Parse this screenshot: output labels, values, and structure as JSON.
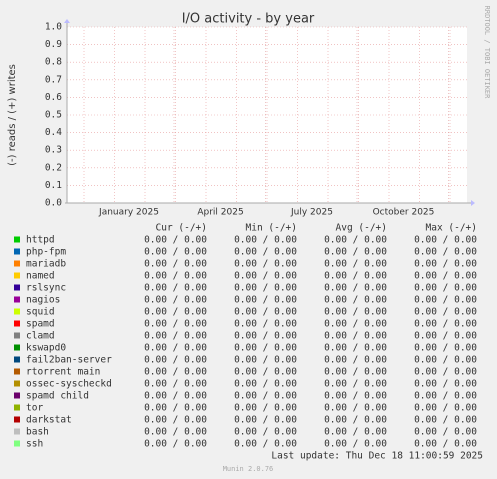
{
  "chart_data": {
    "type": "line",
    "title": "I/O activity - by year",
    "y_label": "(-) reads / (+) writes",
    "side_label": "RRDTOOL / TOBI OETIKER",
    "ylim": [
      0,
      1
    ],
    "yticks": [
      {
        "value": 0,
        "label": "0.0"
      },
      {
        "value": 0.1,
        "label": "0.1"
      },
      {
        "value": 0.2,
        "label": "0.2"
      },
      {
        "value": 0.3,
        "label": "0.3"
      },
      {
        "value": 0.4,
        "label": "0.4"
      },
      {
        "value": 0.5,
        "label": "0.5"
      },
      {
        "value": 0.6,
        "label": "0.6"
      },
      {
        "value": 0.7,
        "label": "0.7"
      },
      {
        "value": 0.8,
        "label": "0.8"
      },
      {
        "value": 0.9,
        "label": "0.9"
      },
      {
        "value": 1,
        "label": "1.0"
      }
    ],
    "xticks": [
      "January 2025",
      "April 2025",
      "July 2025",
      "October 2025"
    ],
    "grid": true,
    "columns": [
      "Cur (-/+)",
      "Min (-/+)",
      "Avg (-/+)",
      "Max (-/+)"
    ],
    "series": [
      {
        "name": "httpd",
        "color": "#00cc00",
        "cur": "0.00 / 0.00",
        "min": "0.00 / 0.00",
        "avg": "0.00 / 0.00",
        "max": "0.00 / 0.00"
      },
      {
        "name": "php-fpm",
        "color": "#0066b3",
        "cur": "0.00 / 0.00",
        "min": "0.00 / 0.00",
        "avg": "0.00 / 0.00",
        "max": "0.00 / 0.00"
      },
      {
        "name": "mariadb",
        "color": "#ff8000",
        "cur": "0.00 / 0.00",
        "min": "0.00 / 0.00",
        "avg": "0.00 / 0.00",
        "max": "0.00 / 0.00"
      },
      {
        "name": "named",
        "color": "#ffcc00",
        "cur": "0.00 / 0.00",
        "min": "0.00 / 0.00",
        "avg": "0.00 / 0.00",
        "max": "0.00 / 0.00"
      },
      {
        "name": "rslsync",
        "color": "#330099",
        "cur": "0.00 / 0.00",
        "min": "0.00 / 0.00",
        "avg": "0.00 / 0.00",
        "max": "0.00 / 0.00"
      },
      {
        "name": "nagios",
        "color": "#990099",
        "cur": "0.00 / 0.00",
        "min": "0.00 / 0.00",
        "avg": "0.00 / 0.00",
        "max": "0.00 / 0.00"
      },
      {
        "name": "squid",
        "color": "#ccff00",
        "cur": "0.00 / 0.00",
        "min": "0.00 / 0.00",
        "avg": "0.00 / 0.00",
        "max": "0.00 / 0.00"
      },
      {
        "name": "spamd",
        "color": "#ff0000",
        "cur": "0.00 / 0.00",
        "min": "0.00 / 0.00",
        "avg": "0.00 / 0.00",
        "max": "0.00 / 0.00"
      },
      {
        "name": "clamd",
        "color": "#808080",
        "cur": "0.00 / 0.00",
        "min": "0.00 / 0.00",
        "avg": "0.00 / 0.00",
        "max": "0.00 / 0.00"
      },
      {
        "name": "kswapd0",
        "color": "#008f00",
        "cur": "0.00 / 0.00",
        "min": "0.00 / 0.00",
        "avg": "0.00 / 0.00",
        "max": "0.00 / 0.00"
      },
      {
        "name": "fail2ban-server",
        "color": "#00487d",
        "cur": "0.00 / 0.00",
        "min": "0.00 / 0.00",
        "avg": "0.00 / 0.00",
        "max": "0.00 / 0.00"
      },
      {
        "name": "rtorrent main",
        "color": "#b35a00",
        "cur": "0.00 / 0.00",
        "min": "0.00 / 0.00",
        "avg": "0.00 / 0.00",
        "max": "0.00 / 0.00"
      },
      {
        "name": "ossec-syscheckd",
        "color": "#b38f00",
        "cur": "0.00 / 0.00",
        "min": "0.00 / 0.00",
        "avg": "0.00 / 0.00",
        "max": "0.00 / 0.00"
      },
      {
        "name": "spamd child",
        "color": "#6b006b",
        "cur": "0.00 / 0.00",
        "min": "0.00 / 0.00",
        "avg": "0.00 / 0.00",
        "max": "0.00 / 0.00"
      },
      {
        "name": "tor",
        "color": "#8fb300",
        "cur": "0.00 / 0.00",
        "min": "0.00 / 0.00",
        "avg": "0.00 / 0.00",
        "max": "0.00 / 0.00"
      },
      {
        "name": "darkstat",
        "color": "#b30000",
        "cur": "0.00 / 0.00",
        "min": "0.00 / 0.00",
        "avg": "0.00 / 0.00",
        "max": "0.00 / 0.00"
      },
      {
        "name": "bash",
        "color": "#bebebe",
        "cur": "0.00 / 0.00",
        "min": "0.00 / 0.00",
        "avg": "0.00 / 0.00",
        "max": "0.00 / 0.00"
      },
      {
        "name": "ssh",
        "color": "#80ff80",
        "cur": "0.00 / 0.00",
        "min": "0.00 / 0.00",
        "avg": "0.00 / 0.00",
        "max": "0.00 / 0.00"
      }
    ],
    "last_update": "Last update: Thu Dec 18 11:00:59 2025",
    "footer": "Munin 2.0.76"
  }
}
